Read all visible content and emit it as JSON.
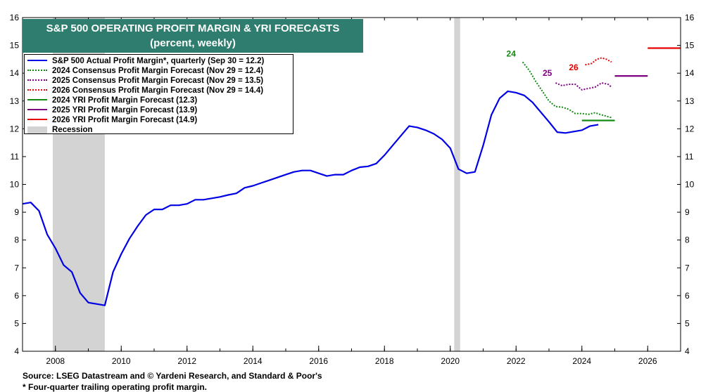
{
  "title": {
    "line1": "S&P 500 OPERATING PROFIT MARGIN & YRI FORECASTS",
    "line2": "(percent, weekly)"
  },
  "legend": [
    {
      "label": "S&P 500 Actual Profit Margin*, quarterly (Sep 30 = 12.2)",
      "color": "#0000e6",
      "style": "solid"
    },
    {
      "label": "2024 Consensus Profit Margin Forecast (Nov 29 = 12.4)",
      "color": "#128a12",
      "style": "dotted"
    },
    {
      "label": "2025 Consensus Profit Margin Forecast (Nov 29 = 13.5)",
      "color": "#800080",
      "style": "dotted"
    },
    {
      "label": "2026 Consensus Profit Margin Forecast (Nov 29 = 14.4)",
      "color": "#e60000",
      "style": "dotted"
    },
    {
      "label": "2024 YRI Profit Margin Forecast (12.3)",
      "color": "#128a12",
      "style": "solid"
    },
    {
      "label": "2025 YRI Profit Margin Forecast (13.9)",
      "color": "#800080",
      "style": "solid"
    },
    {
      "label": "2026 YRI Profit Margin Forecast (14.9)",
      "color": "#e60000",
      "style": "solid"
    },
    {
      "label": "Recession",
      "color": "#d3d3d3",
      "style": "box"
    }
  ],
  "footer": {
    "source": "Source: LSEG Datastream and © Yardeni Research, and Standard & Poor's",
    "note": "* Four-quarter trailing operating profit margin."
  },
  "chart_data": {
    "type": "line",
    "xlim": [
      2007.0,
      2027.0
    ],
    "ylim": [
      4,
      16
    ],
    "yticks": [
      "4",
      "5",
      "6",
      "7",
      "8",
      "9",
      "10",
      "11",
      "12",
      "13",
      "14",
      "15",
      "16"
    ],
    "xticks": [
      "2008",
      "2010",
      "2012",
      "2014",
      "2016",
      "2018",
      "2020",
      "2022",
      "2024",
      "2026"
    ],
    "recessions": [
      [
        2007.92,
        2009.5
      ],
      [
        2020.12,
        2020.3
      ]
    ],
    "annotations": [
      {
        "text": "24",
        "x": 2021.85,
        "y": 14.6,
        "color": "#128a12"
      },
      {
        "text": "25",
        "x": 2022.95,
        "y": 13.9,
        "color": "#800080"
      },
      {
        "text": "26",
        "x": 2023.75,
        "y": 14.1,
        "color": "#e60000"
      }
    ],
    "series": [
      {
        "name": "S&P 500 Actual Profit Margin*, quarterly (Sep 30 = 12.2)",
        "color": "#0000e6",
        "style": "solid",
        "x": [
          2007.0,
          2007.25,
          2007.5,
          2007.75,
          2008.0,
          2008.25,
          2008.5,
          2008.75,
          2009.0,
          2009.25,
          2009.5,
          2009.75,
          2010.0,
          2010.25,
          2010.5,
          2010.75,
          2011.0,
          2011.25,
          2011.5,
          2011.75,
          2012.0,
          2012.25,
          2012.5,
          2012.75,
          2013.0,
          2013.25,
          2013.5,
          2013.75,
          2014.0,
          2014.25,
          2014.5,
          2014.75,
          2015.0,
          2015.25,
          2015.5,
          2015.75,
          2016.0,
          2016.25,
          2016.5,
          2016.75,
          2017.0,
          2017.25,
          2017.5,
          2017.75,
          2018.0,
          2018.25,
          2018.5,
          2018.75,
          2019.0,
          2019.25,
          2019.5,
          2019.75,
          2020.0,
          2020.25,
          2020.5,
          2020.75,
          2021.0,
          2021.25,
          2021.5,
          2021.75,
          2022.0,
          2022.25,
          2022.5,
          2022.75,
          2023.0,
          2023.25,
          2023.5,
          2023.75,
          2024.0,
          2024.25,
          2024.5
        ],
        "y": [
          9.3,
          9.35,
          9.05,
          8.2,
          7.7,
          7.1,
          6.85,
          6.1,
          5.75,
          5.7,
          5.65,
          6.85,
          7.5,
          8.05,
          8.5,
          8.9,
          9.1,
          9.1,
          9.25,
          9.25,
          9.3,
          9.45,
          9.45,
          9.5,
          9.55,
          9.62,
          9.68,
          9.88,
          9.95,
          10.05,
          10.15,
          10.25,
          10.35,
          10.45,
          10.5,
          10.5,
          10.4,
          10.3,
          10.35,
          10.35,
          10.5,
          10.62,
          10.65,
          10.75,
          11.05,
          11.4,
          11.75,
          12.1,
          12.05,
          11.95,
          11.82,
          11.62,
          11.3,
          10.55,
          10.4,
          10.45,
          11.4,
          12.5,
          13.1,
          13.35,
          13.3,
          13.2,
          12.95,
          12.6,
          12.25,
          11.88,
          11.85,
          11.9,
          11.95,
          12.1,
          12.15
        ]
      },
      {
        "name": "2024 Consensus Profit Margin Forecast (Nov 29 = 12.4)",
        "color": "#128a12",
        "style": "dotted",
        "x": [
          2022.2,
          2022.4,
          2022.6,
          2022.8,
          2023.0,
          2023.2,
          2023.4,
          2023.6,
          2023.8,
          2024.0,
          2024.2,
          2024.4,
          2024.6,
          2024.9
        ],
        "y": [
          14.4,
          14.1,
          13.7,
          13.35,
          13.0,
          12.8,
          12.78,
          12.7,
          12.55,
          12.55,
          12.52,
          12.58,
          12.5,
          12.4
        ]
      },
      {
        "name": "2025 Consensus Profit Margin Forecast (Nov 29 = 13.5)",
        "color": "#800080",
        "style": "dotted",
        "x": [
          2023.2,
          2023.4,
          2023.6,
          2023.8,
          2024.0,
          2024.2,
          2024.4,
          2024.6,
          2024.8,
          2024.9
        ],
        "y": [
          13.65,
          13.55,
          13.6,
          13.6,
          13.4,
          13.45,
          13.5,
          13.65,
          13.6,
          13.5
        ]
      },
      {
        "name": "2026 Consensus Profit Margin Forecast (Nov 29 = 14.4)",
        "color": "#e60000",
        "style": "dotted",
        "x": [
          2024.1,
          2024.3,
          2024.45,
          2024.6,
          2024.75,
          2024.9
        ],
        "y": [
          14.3,
          14.35,
          14.5,
          14.55,
          14.5,
          14.4
        ]
      },
      {
        "name": "2024 YRI Profit Margin Forecast (12.3)",
        "color": "#128a12",
        "style": "solid",
        "x": [
          2024.0,
          2025.0
        ],
        "y": [
          12.3,
          12.3
        ]
      },
      {
        "name": "2025 YRI Profit Margin Forecast (13.9)",
        "color": "#800080",
        "style": "solid",
        "x": [
          2025.0,
          2026.0
        ],
        "y": [
          13.9,
          13.9
        ]
      },
      {
        "name": "2026 YRI Profit Margin Forecast (14.9)",
        "color": "#e60000",
        "style": "solid",
        "x": [
          2026.0,
          2027.0
        ],
        "y": [
          14.9,
          14.9
        ]
      }
    ]
  }
}
